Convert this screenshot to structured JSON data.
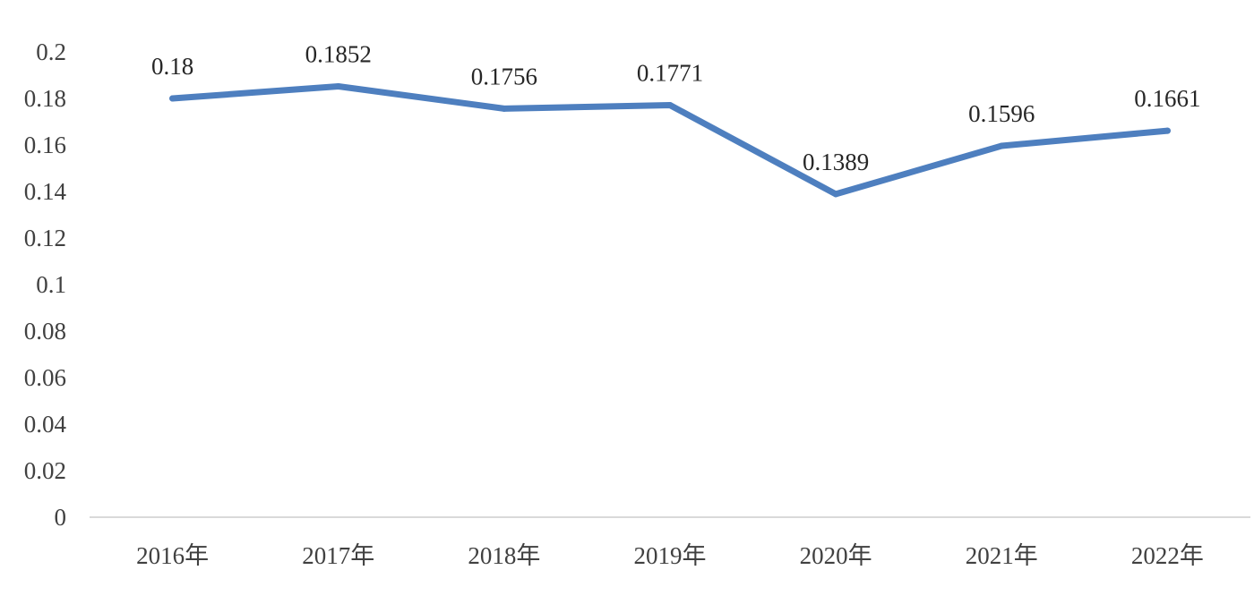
{
  "chart_data": {
    "type": "line",
    "title": "",
    "xlabel": "",
    "ylabel": "",
    "categories": [
      "2016年",
      "2017年",
      "2018年",
      "2019年",
      "2020年",
      "2021年",
      "2022年"
    ],
    "series": [
      {
        "values": [
          0.18,
          0.1852,
          0.1756,
          0.1771,
          0.1389,
          0.1596,
          0.1661
        ],
        "labels": [
          "0.18",
          "0.1852",
          "0.1756",
          "0.1771",
          "0.1389",
          "0.1596",
          "0.1661"
        ],
        "color": "#4E7FBF"
      }
    ],
    "ylim": [
      0,
      0.2
    ],
    "yticks": [
      0,
      0.02,
      0.04,
      0.06,
      0.08,
      0.1,
      0.12,
      0.14,
      0.16,
      0.18,
      0.2
    ],
    "ytick_labels": [
      "0",
      "0.02",
      "0.04",
      "0.06",
      "0.08",
      "0.1",
      "0.12",
      "0.14",
      "0.16",
      "0.18",
      "0.2"
    ],
    "grid": false,
    "legend": "none",
    "axis_color": "#D9D9D9"
  }
}
